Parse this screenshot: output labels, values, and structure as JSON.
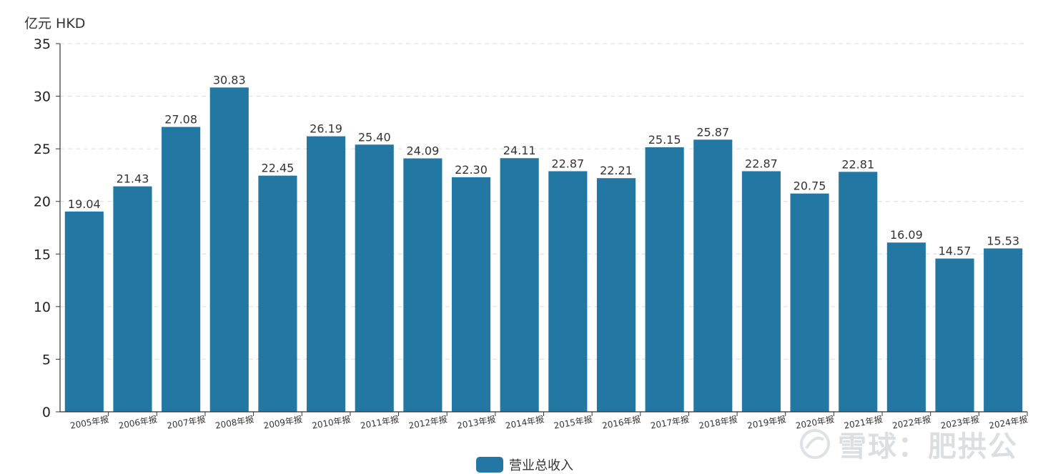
{
  "chart_data": {
    "type": "bar",
    "unit_label": "亿元  HKD",
    "categories": [
      "2005年报",
      "2006年报",
      "2007年报",
      "2008年报",
      "2009年报",
      "2010年报",
      "2011年报",
      "2012年报",
      "2013年报",
      "2014年报",
      "2015年报",
      "2016年报",
      "2017年报",
      "2018年报",
      "2019年报",
      "2020年报",
      "2021年报",
      "2022年报",
      "2023年报",
      "2024年报"
    ],
    "series": [
      {
        "name": "营业总收入",
        "color": "#2277a3",
        "values": [
          19.04,
          21.43,
          27.08,
          30.83,
          22.45,
          26.19,
          25.4,
          24.09,
          22.3,
          24.11,
          22.87,
          22.21,
          25.15,
          25.87,
          22.87,
          20.75,
          22.81,
          16.09,
          14.57,
          15.53
        ],
        "value_labels": [
          "19.04",
          "21.43",
          "27.08",
          "30.83",
          "22.45",
          "26.19",
          "25.40",
          "24.09",
          "22.30",
          "24.11",
          "22.87",
          "22.21",
          "25.15",
          "25.87",
          "22.87",
          "20.75",
          "22.81",
          "16.09",
          "14.57",
          "15.53"
        ]
      }
    ],
    "ylim": [
      0,
      35
    ],
    "yticks": [
      0,
      5,
      10,
      15,
      20,
      25,
      30,
      35
    ],
    "grid": "horizontal-dashed",
    "legend_position": "bottom-center"
  },
  "watermark": {
    "text": "雪球：肥拱公",
    "icon": "snowball-logo-icon"
  }
}
